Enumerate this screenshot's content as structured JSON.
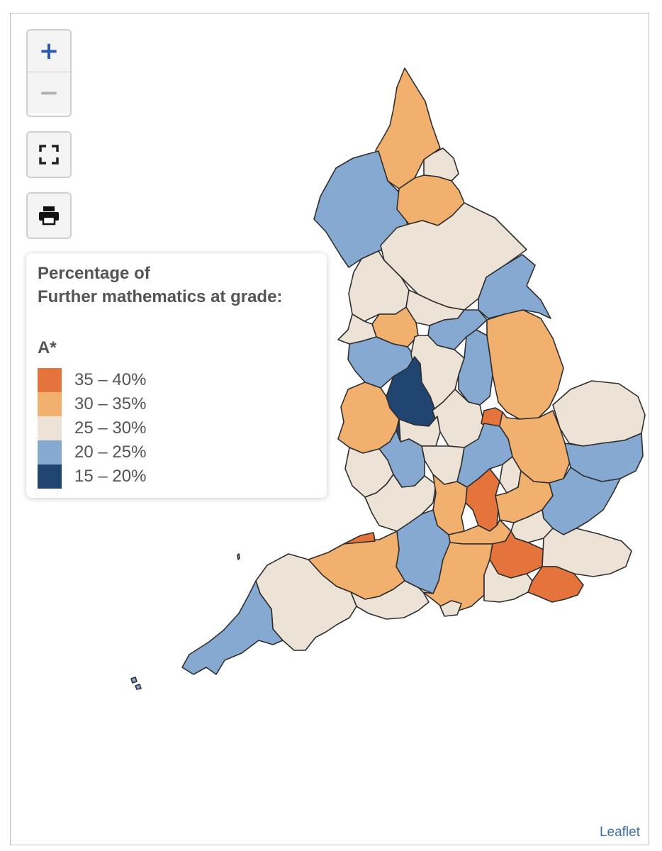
{
  "map": {
    "controls": {
      "zoom_in": "+",
      "zoom_out": "−",
      "fullscreen_icon": "fullscreen-icon",
      "print_icon": "printer-icon"
    },
    "legend": {
      "title_line1": "Percentage of",
      "title_line2": "Further mathematics at grade:",
      "grade": "A*",
      "bins": [
        {
          "label": "35 – 40%",
          "color": "#e4743c"
        },
        {
          "label": "30 – 35%",
          "color": "#f2b06e"
        },
        {
          "label": "25 – 30%",
          "color": "#ece3d6"
        },
        {
          "label": "20 – 25%",
          "color": "#86a9d1"
        },
        {
          "label": "15 – 20%",
          "color": "#214571"
        }
      ]
    },
    "attribution": "Leaflet"
  }
}
